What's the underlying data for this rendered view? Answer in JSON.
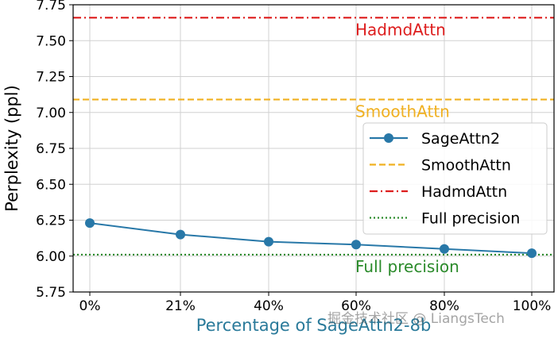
{
  "chart_data": {
    "type": "line",
    "xlabel": "Percentage of SageAttn2-8b",
    "ylabel": "Perplexity (ppl)",
    "categories": [
      "0%",
      "21%",
      "40%",
      "60%",
      "80%",
      "100%"
    ],
    "ylim": [
      5.75,
      7.75
    ],
    "yticks": [
      "5.75",
      "6.00",
      "6.25",
      "6.50",
      "6.75",
      "7.00",
      "7.25",
      "7.50",
      "7.75"
    ],
    "grid": true,
    "legend_position": "center-right",
    "series": [
      {
        "name": "SageAttn2",
        "values": [
          6.23,
          6.15,
          6.1,
          6.08,
          6.05,
          6.02
        ],
        "color": "#2878a8",
        "style": "solid-marker"
      }
    ],
    "reference_lines": [
      {
        "name": "SmoothAttn",
        "value": 7.09,
        "color": "#f0b020",
        "style": "dashed",
        "label": "SmoothAttn"
      },
      {
        "name": "HadmdAttn",
        "value": 7.66,
        "color": "#dd1c1c",
        "style": "dashdot",
        "label": "HadmdAttn"
      },
      {
        "name": "Full precision",
        "value": 6.01,
        "color": "#2a8a2a",
        "style": "dotted",
        "label": "Full precision"
      }
    ]
  },
  "watermark": "掘金技术社区 @ LiangsTech"
}
